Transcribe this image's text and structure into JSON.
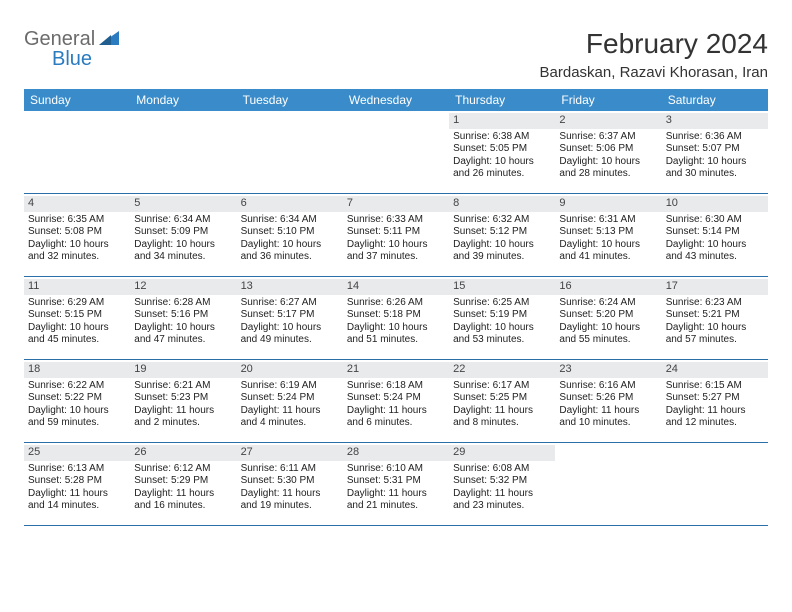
{
  "brand": {
    "name1": "General",
    "name2": "Blue"
  },
  "title": "February 2024",
  "location": "Bardaskan, Razavi Khorasan, Iran",
  "colors": {
    "header_bg": "#3a8bc9",
    "header_text": "#ffffff",
    "daynum_bg": "#e8eaec",
    "week_border": "#2a6fa8",
    "text": "#222222",
    "brand_gray": "#6b6b6b",
    "brand_blue": "#2a7bbf"
  },
  "dow": [
    "Sunday",
    "Monday",
    "Tuesday",
    "Wednesday",
    "Thursday",
    "Friday",
    "Saturday"
  ],
  "cell_fontsize": 10,
  "dow_fontsize": 12,
  "title_fontsize": 28,
  "location_fontsize": 15,
  "weeks": [
    [
      null,
      null,
      null,
      null,
      {
        "n": "1",
        "sr": "Sunrise: 6:38 AM",
        "ss": "Sunset: 5:05 PM",
        "dl": "Daylight: 10 hours and 26 minutes."
      },
      {
        "n": "2",
        "sr": "Sunrise: 6:37 AM",
        "ss": "Sunset: 5:06 PM",
        "dl": "Daylight: 10 hours and 28 minutes."
      },
      {
        "n": "3",
        "sr": "Sunrise: 6:36 AM",
        "ss": "Sunset: 5:07 PM",
        "dl": "Daylight: 10 hours and 30 minutes."
      }
    ],
    [
      {
        "n": "4",
        "sr": "Sunrise: 6:35 AM",
        "ss": "Sunset: 5:08 PM",
        "dl": "Daylight: 10 hours and 32 minutes."
      },
      {
        "n": "5",
        "sr": "Sunrise: 6:34 AM",
        "ss": "Sunset: 5:09 PM",
        "dl": "Daylight: 10 hours and 34 minutes."
      },
      {
        "n": "6",
        "sr": "Sunrise: 6:34 AM",
        "ss": "Sunset: 5:10 PM",
        "dl": "Daylight: 10 hours and 36 minutes."
      },
      {
        "n": "7",
        "sr": "Sunrise: 6:33 AM",
        "ss": "Sunset: 5:11 PM",
        "dl": "Daylight: 10 hours and 37 minutes."
      },
      {
        "n": "8",
        "sr": "Sunrise: 6:32 AM",
        "ss": "Sunset: 5:12 PM",
        "dl": "Daylight: 10 hours and 39 minutes."
      },
      {
        "n": "9",
        "sr": "Sunrise: 6:31 AM",
        "ss": "Sunset: 5:13 PM",
        "dl": "Daylight: 10 hours and 41 minutes."
      },
      {
        "n": "10",
        "sr": "Sunrise: 6:30 AM",
        "ss": "Sunset: 5:14 PM",
        "dl": "Daylight: 10 hours and 43 minutes."
      }
    ],
    [
      {
        "n": "11",
        "sr": "Sunrise: 6:29 AM",
        "ss": "Sunset: 5:15 PM",
        "dl": "Daylight: 10 hours and 45 minutes."
      },
      {
        "n": "12",
        "sr": "Sunrise: 6:28 AM",
        "ss": "Sunset: 5:16 PM",
        "dl": "Daylight: 10 hours and 47 minutes."
      },
      {
        "n": "13",
        "sr": "Sunrise: 6:27 AM",
        "ss": "Sunset: 5:17 PM",
        "dl": "Daylight: 10 hours and 49 minutes."
      },
      {
        "n": "14",
        "sr": "Sunrise: 6:26 AM",
        "ss": "Sunset: 5:18 PM",
        "dl": "Daylight: 10 hours and 51 minutes."
      },
      {
        "n": "15",
        "sr": "Sunrise: 6:25 AM",
        "ss": "Sunset: 5:19 PM",
        "dl": "Daylight: 10 hours and 53 minutes."
      },
      {
        "n": "16",
        "sr": "Sunrise: 6:24 AM",
        "ss": "Sunset: 5:20 PM",
        "dl": "Daylight: 10 hours and 55 minutes."
      },
      {
        "n": "17",
        "sr": "Sunrise: 6:23 AM",
        "ss": "Sunset: 5:21 PM",
        "dl": "Daylight: 10 hours and 57 minutes."
      }
    ],
    [
      {
        "n": "18",
        "sr": "Sunrise: 6:22 AM",
        "ss": "Sunset: 5:22 PM",
        "dl": "Daylight: 10 hours and 59 minutes."
      },
      {
        "n": "19",
        "sr": "Sunrise: 6:21 AM",
        "ss": "Sunset: 5:23 PM",
        "dl": "Daylight: 11 hours and 2 minutes."
      },
      {
        "n": "20",
        "sr": "Sunrise: 6:19 AM",
        "ss": "Sunset: 5:24 PM",
        "dl": "Daylight: 11 hours and 4 minutes."
      },
      {
        "n": "21",
        "sr": "Sunrise: 6:18 AM",
        "ss": "Sunset: 5:24 PM",
        "dl": "Daylight: 11 hours and 6 minutes."
      },
      {
        "n": "22",
        "sr": "Sunrise: 6:17 AM",
        "ss": "Sunset: 5:25 PM",
        "dl": "Daylight: 11 hours and 8 minutes."
      },
      {
        "n": "23",
        "sr": "Sunrise: 6:16 AM",
        "ss": "Sunset: 5:26 PM",
        "dl": "Daylight: 11 hours and 10 minutes."
      },
      {
        "n": "24",
        "sr": "Sunrise: 6:15 AM",
        "ss": "Sunset: 5:27 PM",
        "dl": "Daylight: 11 hours and 12 minutes."
      }
    ],
    [
      {
        "n": "25",
        "sr": "Sunrise: 6:13 AM",
        "ss": "Sunset: 5:28 PM",
        "dl": "Daylight: 11 hours and 14 minutes."
      },
      {
        "n": "26",
        "sr": "Sunrise: 6:12 AM",
        "ss": "Sunset: 5:29 PM",
        "dl": "Daylight: 11 hours and 16 minutes."
      },
      {
        "n": "27",
        "sr": "Sunrise: 6:11 AM",
        "ss": "Sunset: 5:30 PM",
        "dl": "Daylight: 11 hours and 19 minutes."
      },
      {
        "n": "28",
        "sr": "Sunrise: 6:10 AM",
        "ss": "Sunset: 5:31 PM",
        "dl": "Daylight: 11 hours and 21 minutes."
      },
      {
        "n": "29",
        "sr": "Sunrise: 6:08 AM",
        "ss": "Sunset: 5:32 PM",
        "dl": "Daylight: 11 hours and 23 minutes."
      },
      null,
      null
    ]
  ]
}
